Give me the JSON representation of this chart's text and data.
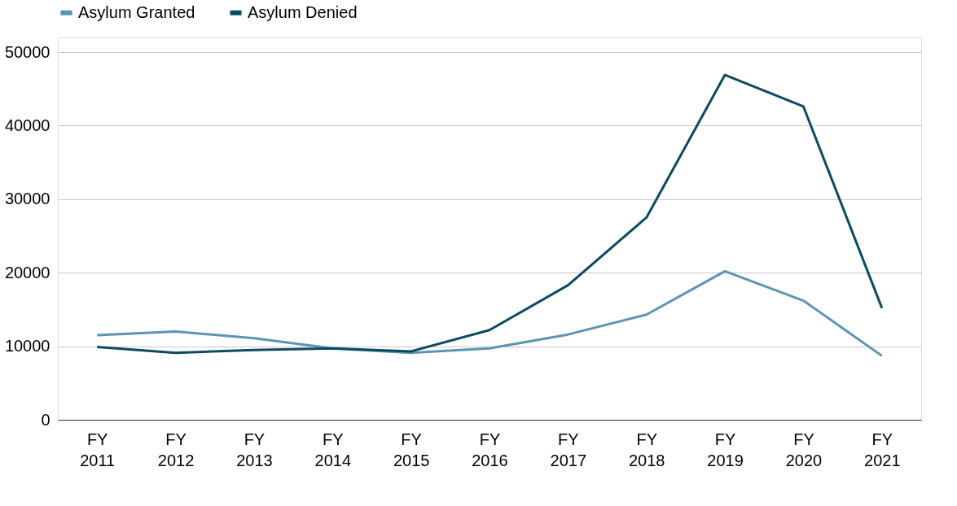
{
  "chart_data": {
    "type": "line",
    "categories": [
      "FY 2011",
      "FY 2012",
      "FY 2013",
      "FY 2014",
      "FY 2015",
      "FY 2016",
      "FY 2017",
      "FY 2018",
      "FY 2019",
      "FY 2020",
      "FY 2021"
    ],
    "series": [
      {
        "name": "Asylum Granted",
        "color": "#5b95b4",
        "values": [
          11500,
          12000,
          11100,
          9700,
          9100,
          9700,
          11600,
          14300,
          20200,
          16200,
          8700
        ]
      },
      {
        "name": "Asylum Denied",
        "color": "#0c4a63",
        "values": [
          9900,
          9100,
          9500,
          9700,
          9300,
          12200,
          18300,
          27500,
          46900,
          42600,
          15200
        ]
      }
    ],
    "ylim": [
      0,
      52000
    ],
    "yticks": [
      0,
      10000,
      20000,
      30000,
      40000,
      50000
    ],
    "grid": "y",
    "legend": "top",
    "marker": "none",
    "line_style": "solid"
  }
}
